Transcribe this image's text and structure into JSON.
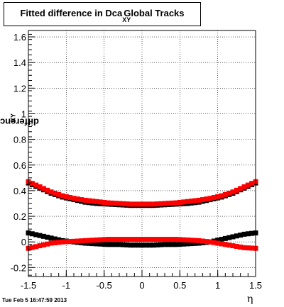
{
  "chart_data": {
    "type": "scatter",
    "title": "Fitted difference in Dca",
    "title_sub": "XY",
    "title_suffix": "Global Tracks",
    "ylabel": "difference in Dca",
    "ylabel_sub": "XY",
    "xlabel": "η",
    "xlim": [
      -1.5,
      1.5
    ],
    "ylim": [
      -0.27,
      1.65
    ],
    "xticks": [
      -1.5,
      -1,
      -0.5,
      0,
      0.5,
      1,
      1.5
    ],
    "xtick_labels": [
      "-1.5",
      "-1",
      "-0.5",
      "0",
      "0.5",
      "1",
      "1.5"
    ],
    "yticks": [
      -0.2,
      0,
      0.2,
      0.4,
      0.6,
      0.8,
      1,
      1.2,
      1.4,
      1.6
    ],
    "ytick_labels": [
      "-0.2",
      "0",
      "0.2",
      "0.4",
      "0.6",
      "0.8",
      "1",
      "1.2",
      "1.4",
      "1.6"
    ],
    "grid": true,
    "series": [
      {
        "color": "#000000",
        "x": [
          -1.5,
          -1.35,
          -1.2,
          -1.05,
          -0.9,
          -0.75,
          -0.6,
          -0.45,
          -0.3,
          -0.15,
          0,
          0.15,
          0.3,
          0.45,
          0.6,
          0.75,
          0.9,
          1.05,
          1.2,
          1.35,
          1.5
        ],
        "y": [
          0.46,
          0.42,
          0.38,
          0.35,
          0.33,
          0.31,
          0.3,
          0.295,
          0.29,
          0.285,
          0.285,
          0.285,
          0.29,
          0.295,
          0.3,
          0.31,
          0.33,
          0.35,
          0.38,
          0.42,
          0.46
        ]
      },
      {
        "color": "#ff0000",
        "x": [
          -1.5,
          -1.35,
          -1.2,
          -1.05,
          -0.9,
          -0.75,
          -0.6,
          -0.45,
          -0.3,
          -0.15,
          0,
          0.15,
          0.3,
          0.45,
          0.6,
          0.75,
          0.9,
          1.05,
          1.2,
          1.35,
          1.5
        ],
        "y": [
          0.47,
          0.43,
          0.39,
          0.36,
          0.34,
          0.325,
          0.315,
          0.305,
          0.3,
          0.295,
          0.295,
          0.295,
          0.3,
          0.305,
          0.315,
          0.325,
          0.34,
          0.36,
          0.39,
          0.43,
          0.47
        ]
      },
      {
        "color": "#000000",
        "x": [
          -1.5,
          -1.35,
          -1.2,
          -1.05,
          -0.9,
          -0.75,
          -0.6,
          -0.45,
          -0.3,
          -0.15,
          0,
          0.15,
          0.3,
          0.45,
          0.6,
          0.75,
          0.9,
          1.05,
          1.2,
          1.35,
          1.5
        ],
        "y": [
          0.07,
          0.05,
          0.03,
          0.01,
          0.0,
          -0.01,
          -0.015,
          -0.02,
          -0.02,
          -0.025,
          -0.025,
          -0.025,
          -0.02,
          -0.02,
          -0.015,
          -0.01,
          0.0,
          0.02,
          0.04,
          0.06,
          0.07
        ]
      },
      {
        "color": "#ff0000",
        "x": [
          -1.5,
          -1.35,
          -1.2,
          -1.05,
          -0.9,
          -0.75,
          -0.6,
          -0.45,
          -0.3,
          -0.15,
          0,
          0.15,
          0.3,
          0.45,
          0.6,
          0.75,
          0.9,
          1.05,
          1.2,
          1.35,
          1.5
        ],
        "y": [
          -0.05,
          -0.03,
          -0.01,
          0.0,
          0.005,
          0.01,
          0.015,
          0.02,
          0.02,
          0.02,
          0.02,
          0.02,
          0.02,
          0.02,
          0.015,
          0.01,
          0.0,
          -0.015,
          -0.03,
          -0.045,
          -0.05
        ]
      }
    ]
  },
  "footer_text": "Tue Feb  5 16:47:59 2013"
}
